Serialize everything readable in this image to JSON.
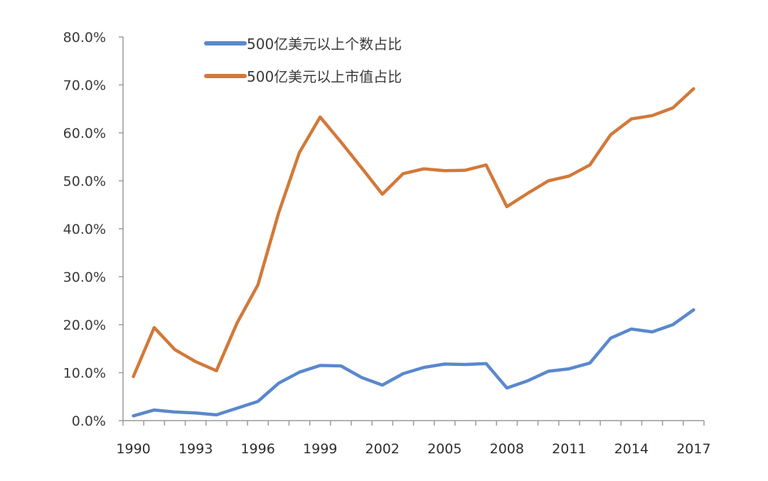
{
  "chart_data": {
    "type": "line",
    "title": "",
    "xlabel": "",
    "ylabel": "",
    "ylim": [
      0,
      80
    ],
    "y_ticks": [
      "0.0%",
      "10.0%",
      "20.0%",
      "30.0%",
      "40.0%",
      "50.0%",
      "60.0%",
      "70.0%",
      "80.0%"
    ],
    "x_tick_labels": [
      "1990",
      "1993",
      "1996",
      "1999",
      "2002",
      "2005",
      "2008",
      "2011",
      "2014",
      "2017"
    ],
    "grid": false,
    "legend_position": "top-left-inside",
    "x": [
      1990,
      1991,
      1992,
      1993,
      1994,
      1995,
      1996,
      1997,
      1998,
      1999,
      2000,
      2001,
      2002,
      2003,
      2004,
      2005,
      2006,
      2007,
      2008,
      2009,
      2010,
      2011,
      2012,
      2013,
      2014,
      2015,
      2016,
      2017
    ],
    "series": [
      {
        "name": "500亿美元以上个数占比",
        "color": "#5a88cc",
        "values": [
          1.0,
          2.2,
          1.8,
          1.6,
          1.2,
          2.6,
          4.0,
          7.8,
          10.1,
          11.5,
          11.4,
          9.0,
          7.4,
          9.8,
          11.1,
          11.8,
          11.7,
          11.9,
          6.8,
          8.3,
          10.3,
          10.8,
          12.0,
          17.2,
          19.1,
          18.5,
          20.0,
          23.1
        ]
      },
      {
        "name": "500亿美元以上市值占比",
        "color": "#d2793a",
        "values": [
          9.2,
          19.4,
          14.8,
          12.3,
          10.4,
          20.4,
          28.3,
          43.3,
          55.9,
          63.3,
          58.1,
          52.7,
          47.2,
          51.5,
          52.5,
          52.1,
          52.2,
          53.3,
          44.6,
          47.4,
          50.0,
          51.0,
          53.3,
          59.6,
          62.9,
          63.6,
          65.2,
          69.2
        ]
      }
    ]
  },
  "legend": {
    "items": [
      {
        "label": "500亿美元以上个数占比",
        "color": "#5a88cc"
      },
      {
        "label": "500亿美元以上市值占比",
        "color": "#d2793a"
      }
    ]
  },
  "axis_color": "#9a9a9a"
}
